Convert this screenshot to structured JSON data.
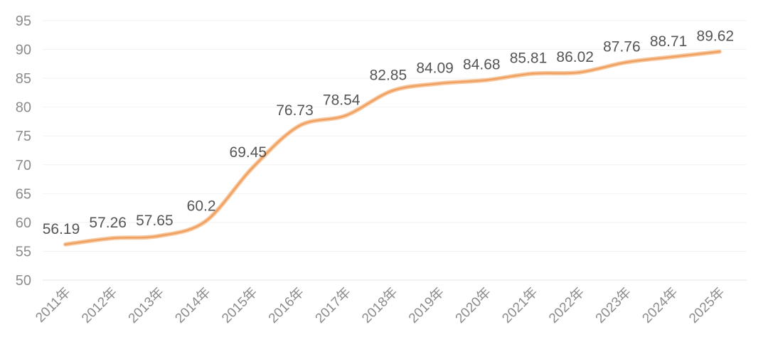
{
  "chart_data": {
    "type": "line",
    "title": "",
    "xlabel": "",
    "ylabel": "",
    "categories": [
      "2011年",
      "2012年",
      "2013年",
      "2014年",
      "2015年",
      "2016年",
      "2017年",
      "2018年",
      "2019年",
      "2020年",
      "2021年",
      "2022年",
      "2023年",
      "2024年",
      "2025年"
    ],
    "series": [
      {
        "values": [
          56.19,
          57.26,
          57.65,
          60.2,
          69.45,
          76.73,
          78.54,
          82.85,
          84.09,
          84.68,
          85.81,
          86.02,
          87.76,
          88.71,
          89.62
        ]
      }
    ],
    "data_labels": [
      "56.19",
      "57.26",
      "57.65",
      "60.2",
      "69.45",
      "76.73",
      "78.54",
      "82.85",
      "84.09",
      "84.68",
      "85.81",
      "86.02",
      "87.76",
      "88.71",
      "89.62"
    ],
    "ylim": [
      50,
      95
    ],
    "yticks": [
      "50",
      "55",
      "60",
      "65",
      "70",
      "75",
      "80",
      "85",
      "90",
      "95"
    ],
    "grid": true,
    "line_color": "#f0a060",
    "smooth": true
  }
}
